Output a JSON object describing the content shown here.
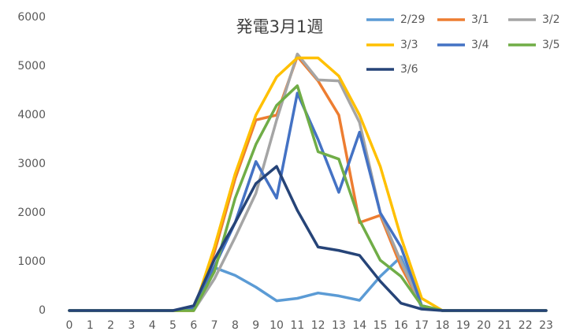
{
  "chart_data": {
    "type": "line",
    "title": "発電3月1週",
    "categories": [
      "0",
      "1",
      "2",
      "3",
      "4",
      "5",
      "6",
      "7",
      "8",
      "9",
      "10",
      "11",
      "12",
      "13",
      "14",
      "15",
      "16",
      "17",
      "18",
      "19",
      "20",
      "21",
      "22",
      "23"
    ],
    "ylim": [
      0,
      6000
    ],
    "yticks": [
      0,
      1000,
      2000,
      3000,
      4000,
      5000,
      6000
    ],
    "grid": false,
    "legend": "top-right",
    "series": [
      {
        "name": "2/29",
        "color": "#5b9bd5",
        "values": [
          0,
          0,
          0,
          0,
          0,
          0,
          50,
          880,
          720,
          480,
          200,
          250,
          360,
          300,
          210,
          700,
          1100,
          50,
          0,
          0,
          0,
          0,
          0,
          0
        ]
      },
      {
        "name": "3/1",
        "color": "#ed7d31",
        "values": [
          0,
          0,
          0,
          0,
          0,
          0,
          0,
          1200,
          2700,
          3900,
          4000,
          5200,
          4700,
          4000,
          1800,
          1950,
          900,
          100,
          0,
          0,
          0,
          0,
          0,
          0
        ]
      },
      {
        "name": "3/2",
        "color": "#a5a5a5",
        "values": [
          0,
          0,
          0,
          0,
          0,
          0,
          0,
          650,
          1500,
          2400,
          3900,
          5250,
          4720,
          4700,
          3850,
          2000,
          1000,
          100,
          0,
          0,
          0,
          0,
          0,
          0
        ]
      },
      {
        "name": "3/3",
        "color": "#ffc000",
        "values": [
          0,
          0,
          0,
          0,
          0,
          0,
          0,
          1300,
          2800,
          4000,
          4780,
          5170,
          5170,
          4800,
          4000,
          2950,
          1500,
          250,
          0,
          0,
          0,
          0,
          0,
          0
        ]
      },
      {
        "name": "3/4",
        "color": "#4472c4",
        "values": [
          0,
          0,
          0,
          0,
          0,
          0,
          50,
          900,
          1800,
          3050,
          2300,
          4450,
          3500,
          2420,
          3650,
          2000,
          1300,
          100,
          0,
          0,
          0,
          0,
          0,
          0
        ]
      },
      {
        "name": "3/5",
        "color": "#70ad47",
        "values": [
          0,
          0,
          0,
          0,
          0,
          0,
          0,
          800,
          2300,
          3400,
          4200,
          4600,
          3250,
          3100,
          1850,
          1030,
          700,
          100,
          0,
          0,
          0,
          0,
          0,
          0
        ]
      },
      {
        "name": "3/6",
        "color": "#264478",
        "values": [
          0,
          0,
          0,
          0,
          0,
          0,
          100,
          1050,
          1800,
          2600,
          2950,
          2050,
          1300,
          1230,
          1130,
          600,
          150,
          30,
          0,
          0,
          0,
          0,
          0,
          0
        ]
      }
    ]
  }
}
